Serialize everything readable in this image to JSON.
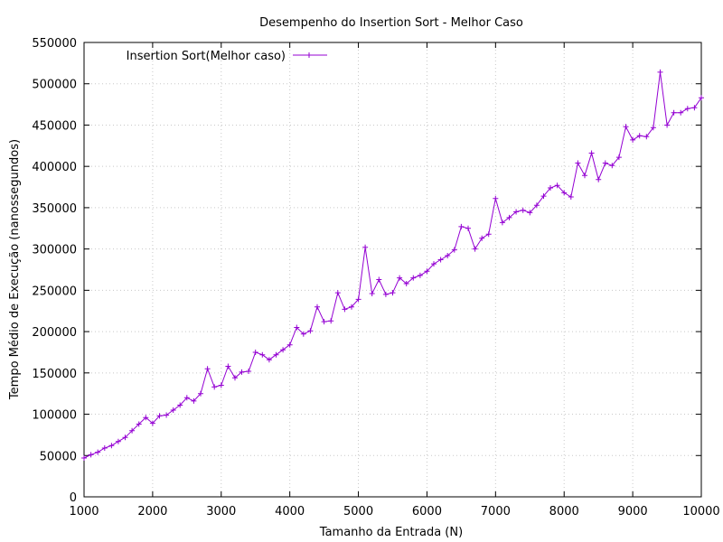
{
  "chart_data": {
    "type": "line",
    "title": "Desempenho do Insertion Sort - Melhor Caso",
    "xlabel": "Tamanho da Entrada (N)",
    "ylabel": "Tempo Médio de Execução (nanossegundos)",
    "xlim": [
      1000,
      10000
    ],
    "ylim": [
      0,
      550000
    ],
    "xticks": [
      1000,
      2000,
      3000,
      4000,
      5000,
      6000,
      7000,
      8000,
      9000,
      10000
    ],
    "yticks": [
      0,
      50000,
      100000,
      150000,
      200000,
      250000,
      300000,
      350000,
      400000,
      450000,
      500000,
      550000
    ],
    "grid": true,
    "legend_position": "top-left",
    "colors": {
      "series": "#9400d3",
      "grid": "#c8c8c8",
      "axis": "#000000"
    },
    "series": [
      {
        "name": "Insertion Sort(Melhor caso)",
        "x": [
          1000,
          1100,
          1200,
          1300,
          1400,
          1500,
          1600,
          1700,
          1800,
          1900,
          2000,
          2100,
          2200,
          2300,
          2400,
          2500,
          2600,
          2700,
          2800,
          2900,
          3000,
          3100,
          3200,
          3300,
          3400,
          3500,
          3600,
          3700,
          3800,
          3900,
          4000,
          4100,
          4200,
          4300,
          4400,
          4500,
          4600,
          4700,
          4800,
          4900,
          5000,
          5100,
          5200,
          5300,
          5400,
          5500,
          5600,
          5700,
          5800,
          5900,
          6000,
          6100,
          6200,
          6300,
          6400,
          6500,
          6600,
          6700,
          6800,
          6900,
          7000,
          7100,
          7200,
          7300,
          7400,
          7500,
          7600,
          7700,
          7800,
          7900,
          8000,
          8100,
          8200,
          8300,
          8400,
          8500,
          8600,
          8700,
          8800,
          8900,
          9000,
          9100,
          9200,
          9300,
          9400,
          9500,
          9600,
          9700,
          9800,
          9900,
          10000
        ],
        "y": [
          47000,
          51000,
          54000,
          59000,
          62000,
          67000,
          72000,
          80000,
          88000,
          96000,
          89000,
          98000,
          99000,
          105000,
          111000,
          120000,
          116000,
          125000,
          155000,
          133000,
          135000,
          158000,
          144000,
          151000,
          152000,
          175000,
          172000,
          166000,
          172000,
          178000,
          184000,
          205000,
          197000,
          201000,
          230000,
          212000,
          213000,
          247000,
          227000,
          230000,
          239000,
          302000,
          246000,
          263000,
          245000,
          247000,
          265000,
          258000,
          265000,
          268000,
          273000,
          282000,
          287000,
          292000,
          299000,
          327000,
          325000,
          300000,
          313000,
          318000,
          361000,
          332000,
          338000,
          345000,
          347000,
          344000,
          353000,
          364000,
          374000,
          377000,
          368000,
          363000,
          404000,
          389000,
          416000,
          384000,
          404000,
          401000,
          411000,
          448000,
          432000,
          437000,
          436000,
          447000,
          514000,
          450000,
          465000,
          465000,
          470000,
          471000,
          483000
        ]
      }
    ]
  }
}
